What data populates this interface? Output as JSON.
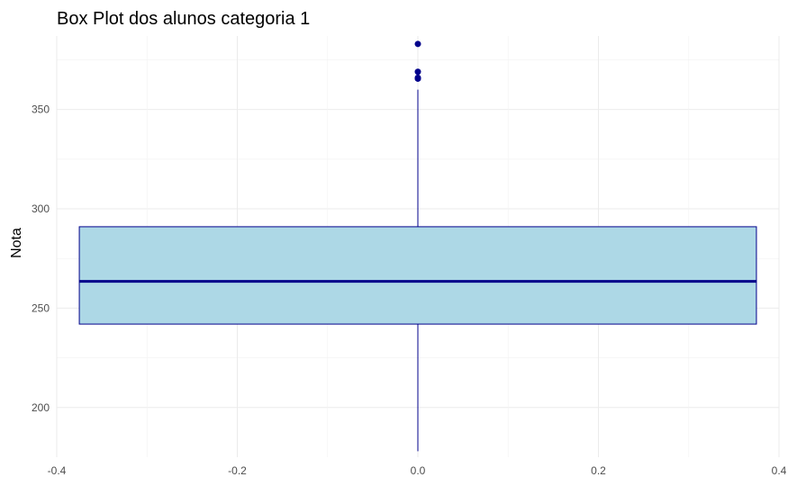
{
  "chart_data": {
    "type": "box",
    "title": "Box Plot dos alunos categoria 1",
    "xlabel": "",
    "ylabel": "Nota",
    "xlim": [
      -0.4,
      0.4
    ],
    "ylim": [
      175,
      387
    ],
    "x_ticks": [
      -0.4,
      -0.2,
      0.0,
      0.2,
      0.4
    ],
    "x_tick_labels": [
      "-0.4",
      "-0.2",
      "0.0",
      "0.2",
      "0.4"
    ],
    "y_ticks": [
      200,
      250,
      300,
      350
    ],
    "y_tick_labels": [
      "200",
      "250",
      "300",
      "350"
    ],
    "grid": true,
    "box": {
      "x_center": 0.0,
      "x_range": [
        -0.375,
        0.375
      ],
      "whisker_low": 178,
      "q1": 242,
      "median": 263.5,
      "q3": 291,
      "whisker_high": 360,
      "outliers": [
        365.5,
        366,
        369,
        383
      ]
    },
    "colors": {
      "box_fill": "#add8e6",
      "box_stroke": "#00008b",
      "median": "#00008b",
      "outlier": "#00008b"
    }
  }
}
